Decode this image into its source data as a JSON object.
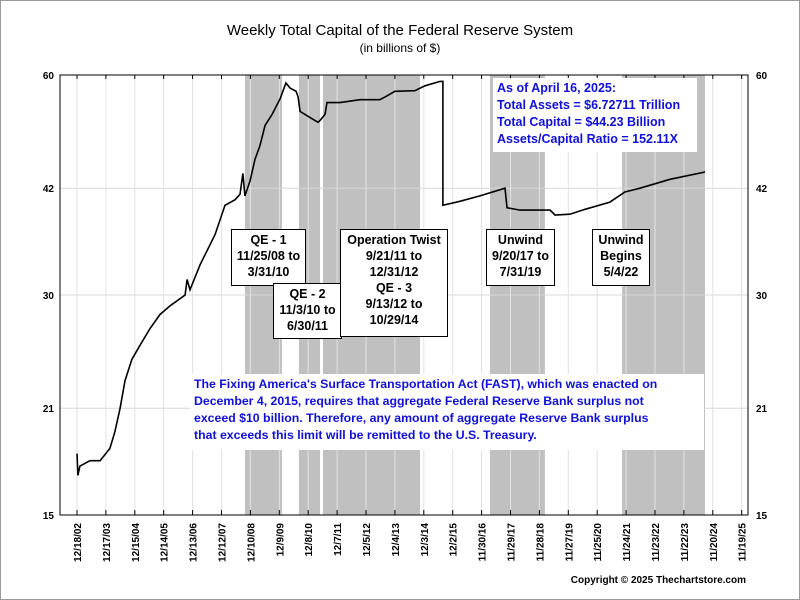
{
  "chart_data": {
    "type": "line",
    "title": "Weekly Total Capital of the Federal Reserve System",
    "subtitle": "(in billions of $)",
    "xlabel": "",
    "ylabel": "",
    "yscale": "log",
    "ylim": [
      15,
      60
    ],
    "yticks": [
      15,
      21,
      30,
      42,
      60
    ],
    "ytick_labels": [
      "15",
      "21",
      "30",
      "42",
      "60"
    ],
    "xlim_years": [
      2002.4,
      2026.2
    ],
    "xtick_labels": [
      "12/18/02",
      "12/17/03",
      "12/15/04",
      "12/14/05",
      "12/13/06",
      "12/12/07",
      "12/10/08",
      "12/9/09",
      "12/8/10",
      "12/7/11",
      "12/5/12",
      "12/4/13",
      "12/3/14",
      "12/2/15",
      "11/30/16",
      "11/29/17",
      "11/28/18",
      "11/27/19",
      "11/25/20",
      "11/24/21",
      "11/23/22",
      "11/22/23",
      "11/20/24",
      "11/19/25"
    ],
    "grid": true,
    "series": [
      {
        "name": "Total Capital",
        "color": "#000000",
        "x": [
          2002.96,
          2002.99,
          2003.06,
          2003.41,
          2003.76,
          2004.1,
          2004.27,
          2004.45,
          2004.62,
          2004.86,
          2005.14,
          2005.49,
          2005.83,
          2006.18,
          2006.7,
          2006.77,
          2006.87,
          2007.22,
          2007.74,
          2008.08,
          2008.43,
          2008.6,
          2008.7,
          2008.77,
          2008.95,
          2009.12,
          2009.29,
          2009.47,
          2009.71,
          2009.99,
          2010.19,
          2010.33,
          2010.54,
          2010.61,
          2010.68,
          2011.02,
          2011.3,
          2011.37,
          2011.54,
          2011.61,
          2012.06,
          2012.75,
          2013.44,
          2013.62,
          2013.96,
          2014.65,
          2015.0,
          2015.52,
          2015.59,
          2015.62,
          2016.21,
          2016.9,
          2017.77,
          2017.84,
          2018.29,
          2019.33,
          2019.5,
          2020.02,
          2020.54,
          2021.4,
          2021.92,
          2022.44,
          2023.48,
          2024.69
        ],
        "y": [
          18.2,
          17.0,
          17.5,
          17.8,
          17.8,
          18.5,
          19.5,
          21.0,
          22.9,
          24.5,
          25.6,
          27.0,
          28.2,
          29.0,
          30.0,
          31.5,
          30.5,
          33.0,
          36.3,
          39.8,
          40.5,
          41.2,
          44.0,
          41.0,
          43.0,
          46.0,
          48.0,
          51.2,
          53.0,
          55.7,
          58.5,
          57.6,
          57.0,
          56.0,
          53.5,
          52.5,
          51.7,
          52.0,
          53.0,
          55.0,
          55.0,
          55.5,
          55.5,
          56.0,
          57.0,
          57.1,
          58.0,
          58.8,
          58.8,
          39.8,
          40.3,
          41.0,
          42.0,
          39.5,
          39.2,
          39.2,
          38.6,
          38.7,
          39.3,
          40.2,
          41.5,
          42.0,
          43.2,
          44.2
        ]
      }
    ],
    "shaded_periods": [
      {
        "name": "QE-1",
        "start": 2008.77,
        "end": 2010.05
      },
      {
        "name": "QE-2",
        "start": 2010.64,
        "end": 2011.37
      },
      {
        "name": "Operation Twist / QE-3",
        "start": 2011.47,
        "end": 2014.83
      },
      {
        "name": "Unwind",
        "start": 2017.25,
        "end": 2019.15
      },
      {
        "name": "Unwind Begins",
        "start": 2021.82,
        "end": 2024.69
      }
    ],
    "shade_color": "#c0c0c0",
    "annotations": {
      "qe1": [
        "QE - 1",
        "11/25/08 to",
        "3/31/10"
      ],
      "qe2": [
        "QE - 2",
        "11/3/10 to",
        "6/30/11"
      ],
      "twist": [
        "Operation Twist",
        "9/21/11 to",
        "12/31/12",
        "QE - 3",
        "9/13/12 to",
        "10/29/14"
      ],
      "unwind": [
        "Unwind",
        "9/20/17 to",
        "7/31/19"
      ],
      "unwind2": [
        "Unwind",
        "Begins",
        "5/4/22"
      ],
      "summary": [
        "As of April 16, 2025:",
        "Total Assets = $6.72711 Trillion",
        "Total Capital  = $44.23 Billion",
        "Assets/Capital Ratio = 152.11X"
      ],
      "fast": [
        "The Fixing America's Surface Transportation Act (FAST), which was enacted on",
        "December 4, 2015, requires that aggregate Federal Reserve Bank surplus not",
        "exceed $10 billion.  Therefore, any amount of aggregate Reserve Bank surplus",
        "that exceeds this limit will be remitted to the U.S. Treasury."
      ]
    },
    "text_color": "#1010d8"
  },
  "copyright": "Copyright © 2025 Thechartstore.com"
}
